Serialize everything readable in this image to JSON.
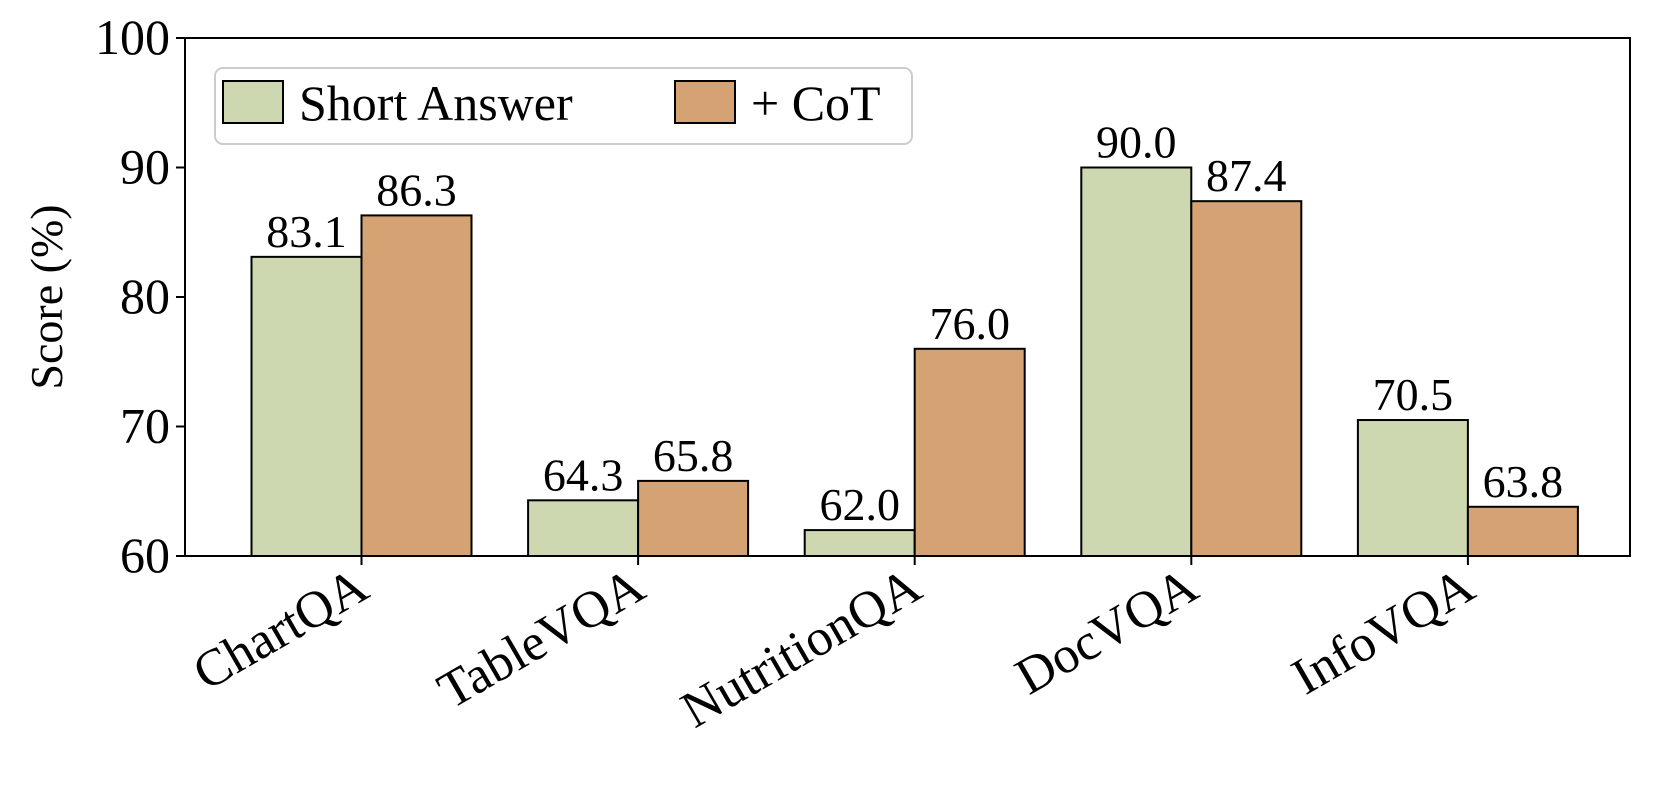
{
  "chart_data": {
    "type": "bar",
    "title": "",
    "xlabel": "",
    "ylabel": "Score (%)",
    "ylim": [
      60,
      100
    ],
    "yticks": [
      60,
      70,
      80,
      90,
      100
    ],
    "categories": [
      "ChartQA",
      "TableVQA",
      "NutritionQA",
      "DocVQA",
      "InfoVQA"
    ],
    "series": [
      {
        "name": "Short Answer",
        "color": "#cdd8b0",
        "values": [
          83.1,
          64.3,
          62.0,
          90.0,
          70.5
        ],
        "labels": [
          "83.1",
          "64.3",
          "62.0",
          "90.0",
          "70.5"
        ]
      },
      {
        "name": "+ CoT",
        "color": "#d4a273",
        "values": [
          86.3,
          65.8,
          76.0,
          87.4,
          63.8
        ],
        "labels": [
          "86.3",
          "65.8",
          "76.0",
          "87.4",
          "63.8"
        ]
      }
    ],
    "legend": "top-left",
    "grid": false
  }
}
